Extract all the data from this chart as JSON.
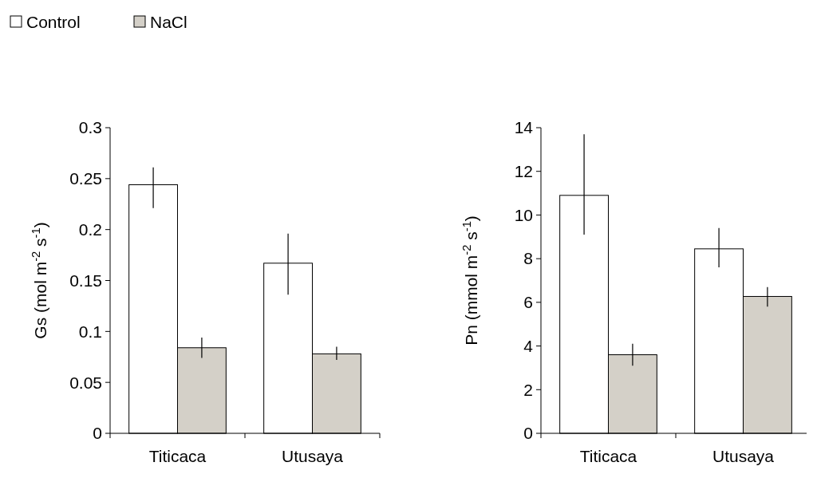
{
  "chart_data": [
    {
      "type": "bar",
      "ylabel": "Gs (mol m$^{-2}$ s$^{-1}$)",
      "categories": [
        "Titicaca",
        "Utusaya"
      ],
      "series": [
        {
          "name": "Control",
          "color": "#ffffff",
          "values": [
            0.244,
            0.167
          ],
          "errors": [
            [
              0.221,
              0.261
            ],
            [
              0.136,
              0.196
            ]
          ]
        },
        {
          "name": "NaCl",
          "color": "#d4d0c8",
          "values": [
            0.084,
            0.078
          ],
          "errors": [
            [
              0.074,
              0.094
            ],
            [
              0.072,
              0.085
            ]
          ]
        }
      ],
      "ylim": [
        0,
        0.3
      ],
      "yticks": [
        0,
        0.05,
        0.1,
        0.15,
        0.2,
        0.25,
        0.3
      ],
      "legend": "top left",
      "grid": false
    },
    {
      "type": "bar",
      "ylabel": "Pn (mmol m$^{-2}$ s$^{-1}$)",
      "categories": [
        "Titicaca",
        "Utusaya"
      ],
      "series": [
        {
          "color": "#ffffff",
          "values": [
            10.9,
            8.45
          ],
          "errors": [
            [
              9.1,
              13.7
            ],
            [
              7.6,
              9.4
            ]
          ]
        },
        {
          "color": "#d4d0c8",
          "values": [
            3.6,
            6.27
          ],
          "errors": [
            [
              3.1,
              4.1
            ],
            [
              5.8,
              6.7
            ]
          ]
        }
      ],
      "ylim": [
        0,
        14
      ],
      "yticks": [
        0,
        2,
        4,
        6,
        8,
        10,
        12,
        14
      ],
      "legend": false,
      "grid": false
    }
  ]
}
